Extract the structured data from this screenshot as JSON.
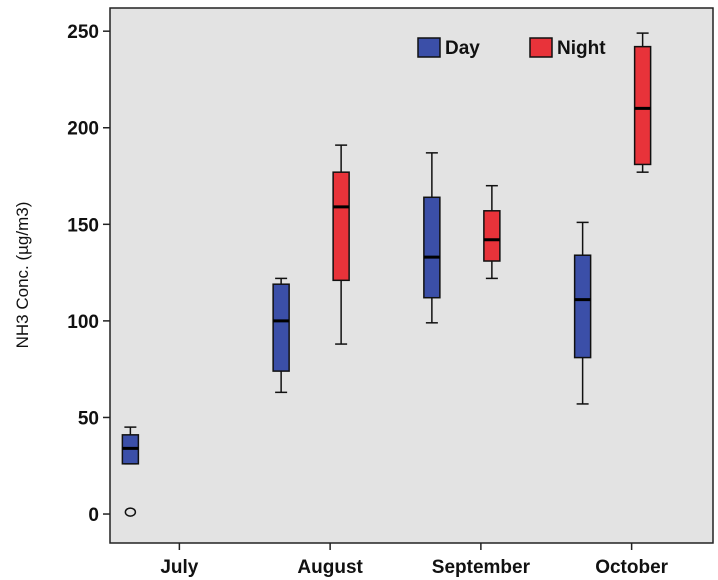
{
  "chart_data": {
    "type": "boxplot",
    "title": "",
    "xlabel": "",
    "ylabel": "NH3 Conc. (µg/m3)",
    "ylim": [
      -15,
      262
    ],
    "yticks": [
      0,
      50,
      100,
      150,
      200,
      250
    ],
    "categories": [
      "July",
      "August",
      "September",
      "October"
    ],
    "grid": false,
    "legend_position": "top-right",
    "series": [
      {
        "name": "Day",
        "color": "#3b4fa8",
        "boxes": [
          {
            "category": "July",
            "min": 26,
            "q1": 26,
            "median": 34,
            "q3": 41,
            "max": 45,
            "outliers": [
              1
            ]
          },
          {
            "category": "August",
            "min": 63,
            "q1": 74,
            "median": 100,
            "q3": 119,
            "max": 122,
            "outliers": []
          },
          {
            "category": "September",
            "min": 99,
            "q1": 112,
            "median": 133,
            "q3": 164,
            "max": 187,
            "outliers": []
          },
          {
            "category": "October",
            "min": 57,
            "q1": 81,
            "median": 111,
            "q3": 134,
            "max": 151,
            "outliers": []
          }
        ]
      },
      {
        "name": "Night",
        "color": "#e8333a",
        "boxes": [
          {
            "category": "July",
            "missing": true
          },
          {
            "category": "August",
            "min": 88,
            "q1": 121,
            "median": 159,
            "q3": 177,
            "max": 191,
            "outliers": []
          },
          {
            "category": "September",
            "min": 122,
            "q1": 131,
            "median": 142,
            "q3": 157,
            "max": 170,
            "outliers": []
          },
          {
            "category": "October",
            "min": 177,
            "q1": 181,
            "median": 210,
            "q3": 242,
            "max": 249,
            "outliers": []
          }
        ]
      }
    ]
  }
}
